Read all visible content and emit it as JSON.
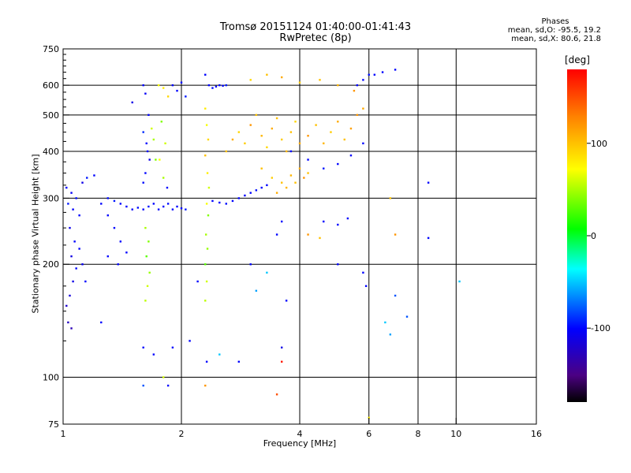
{
  "title": {
    "line1": "Tromsø 20151124 01:40:00-01:41:43",
    "line2": "RwPretec (8p)"
  },
  "stats": {
    "header": "Phases",
    "line1": "mean, sd,O: -95.5, 19.2",
    "line2": "mean, sd,X:  80.6, 21.8"
  },
  "chart_data": {
    "type": "scatter",
    "xlabel": "Frequency [MHz]",
    "ylabel": "Stationary phase Virtual Height [km]",
    "x_scale": "log",
    "y_scale": "log",
    "xlim": [
      1,
      16
    ],
    "ylim": [
      75,
      750
    ],
    "x_ticks": [
      1,
      2,
      4,
      6,
      8,
      10,
      16
    ],
    "x_tick_labels": [
      "1",
      "2",
      "4",
      "6",
      "8",
      "10",
      "16"
    ],
    "x_gridlines": [
      2,
      4,
      6,
      8,
      10
    ],
    "y_ticks": [
      75,
      100,
      200,
      300,
      400,
      500,
      600,
      750
    ],
    "y_tick_labels": [
      "75",
      "100",
      "200",
      "300",
      "400",
      "500",
      "600",
      "750"
    ],
    "y_gridlines": [
      100,
      200,
      300,
      400,
      500,
      600
    ],
    "colorbar": {
      "label": "[deg]",
      "range": [
        -180,
        180
      ],
      "ticks": [
        100,
        0,
        -100
      ],
      "tick_labels": [
        "100",
        "0",
        "-100"
      ]
    },
    "series": [
      {
        "color_by": "phase_deg",
        "points": [
          [
            1.02,
            320,
            -100
          ],
          [
            1.05,
            310,
            -105
          ],
          [
            1.08,
            300,
            -98
          ],
          [
            1.12,
            330,
            -110
          ],
          [
            1.15,
            340,
            -95
          ],
          [
            1.2,
            345,
            -100
          ],
          [
            1.03,
            290,
            -95
          ],
          [
            1.06,
            280,
            -102
          ],
          [
            1.1,
            270,
            -100
          ],
          [
            1.04,
            250,
            -108
          ],
          [
            1.07,
            230,
            -100
          ],
          [
            1.05,
            210,
            -112
          ],
          [
            1.08,
            195,
            -100
          ],
          [
            1.06,
            180,
            -110
          ],
          [
            1.04,
            165,
            -115
          ],
          [
            1.02,
            155,
            -120
          ],
          [
            1.03,
            140,
            -125
          ],
          [
            1.05,
            135,
            -130
          ],
          [
            1.1,
            220,
            -100
          ],
          [
            1.12,
            200,
            -105
          ],
          [
            1.14,
            180,
            -100
          ],
          [
            1.25,
            290,
            -100
          ],
          [
            1.3,
            300,
            -98
          ],
          [
            1.35,
            295,
            -95
          ],
          [
            1.4,
            290,
            -100
          ],
          [
            1.45,
            285,
            -100
          ],
          [
            1.5,
            280,
            -102
          ],
          [
            1.55,
            283,
            -98
          ],
          [
            1.6,
            280,
            -100
          ],
          [
            1.65,
            285,
            -95
          ],
          [
            1.7,
            290,
            -100
          ],
          [
            1.75,
            280,
            -100
          ],
          [
            1.8,
            285,
            -100
          ],
          [
            1.85,
            290,
            -98
          ],
          [
            1.9,
            280,
            -100
          ],
          [
            1.95,
            285,
            -100
          ],
          [
            2.0,
            282,
            -100
          ],
          [
            2.05,
            280,
            -95
          ],
          [
            1.6,
            600,
            -100
          ],
          [
            1.62,
            570,
            -105
          ],
          [
            1.65,
            500,
            -100
          ],
          [
            1.6,
            450,
            -90
          ],
          [
            1.63,
            420,
            -100
          ],
          [
            1.66,
            380,
            -110
          ],
          [
            1.62,
            350,
            -100
          ],
          [
            1.6,
            330,
            -98
          ],
          [
            1.64,
            400,
            -100
          ],
          [
            1.68,
            460,
            60
          ],
          [
            1.7,
            430,
            50
          ],
          [
            1.72,
            380,
            40
          ],
          [
            1.62,
            250,
            50
          ],
          [
            1.65,
            230,
            40
          ],
          [
            1.63,
            210,
            30
          ],
          [
            1.66,
            190,
            45
          ],
          [
            1.64,
            175,
            60
          ],
          [
            1.62,
            160,
            55
          ],
          [
            1.75,
            600,
            70
          ],
          [
            1.8,
            590,
            80
          ],
          [
            1.85,
            560,
            90
          ],
          [
            1.78,
            480,
            40
          ],
          [
            1.82,
            420,
            60
          ],
          [
            1.76,
            380,
            70
          ],
          [
            1.8,
            340,
            50
          ],
          [
            1.84,
            320,
            -100
          ],
          [
            1.9,
            600,
            -100
          ],
          [
            1.95,
            580,
            -100
          ],
          [
            2.0,
            610,
            -100
          ],
          [
            2.05,
            560,
            -95
          ],
          [
            2.3,
            640,
            -100
          ],
          [
            2.35,
            600,
            -100
          ],
          [
            2.4,
            590,
            -98
          ],
          [
            2.45,
            595,
            -100
          ],
          [
            2.5,
            600,
            -100
          ],
          [
            2.55,
            598,
            -100
          ],
          [
            2.6,
            600,
            -95
          ],
          [
            2.3,
            520,
            80
          ],
          [
            2.32,
            470,
            70
          ],
          [
            2.34,
            430,
            90
          ],
          [
            2.3,
            390,
            100
          ],
          [
            2.33,
            350,
            80
          ],
          [
            2.35,
            320,
            60
          ],
          [
            2.32,
            290,
            70
          ],
          [
            2.34,
            270,
            40
          ],
          [
            2.31,
            240,
            50
          ],
          [
            2.33,
            220,
            45
          ],
          [
            2.3,
            200,
            30
          ],
          [
            2.32,
            180,
            60
          ],
          [
            2.3,
            160,
            55
          ],
          [
            2.32,
            110,
            -100
          ],
          [
            2.3,
            95,
            120
          ],
          [
            2.4,
            295,
            -100
          ],
          [
            2.5,
            292,
            -100
          ],
          [
            2.6,
            290,
            -98
          ],
          [
            2.7,
            295,
            -100
          ],
          [
            2.8,
            300,
            -100
          ],
          [
            2.9,
            305,
            -102
          ],
          [
            3.0,
            310,
            -100
          ],
          [
            3.1,
            315,
            -98
          ],
          [
            3.2,
            320,
            -100
          ],
          [
            3.3,
            325,
            -100
          ],
          [
            2.6,
            400,
            100
          ],
          [
            2.7,
            430,
            110
          ],
          [
            2.8,
            450,
            90
          ],
          [
            2.9,
            420,
            95
          ],
          [
            3.0,
            470,
            120
          ],
          [
            3.1,
            500,
            100
          ],
          [
            3.2,
            440,
            105
          ],
          [
            3.3,
            410,
            90
          ],
          [
            3.4,
            460,
            110
          ],
          [
            3.5,
            490,
            100
          ],
          [
            3.6,
            430,
            95
          ],
          [
            3.7,
            400,
            105
          ],
          [
            3.8,
            450,
            100
          ],
          [
            3.9,
            480,
            90
          ],
          [
            4.0,
            420,
            110
          ],
          [
            4.2,
            440,
            120
          ],
          [
            4.4,
            470,
            100
          ],
          [
            4.6,
            420,
            105
          ],
          [
            4.8,
            450,
            95
          ],
          [
            5.0,
            480,
            110
          ],
          [
            5.2,
            430,
            100
          ],
          [
            5.4,
            460,
            115
          ],
          [
            5.6,
            500,
            120
          ],
          [
            5.8,
            520,
            110
          ],
          [
            3.0,
            620,
            90
          ],
          [
            3.3,
            640,
            100
          ],
          [
            3.6,
            630,
            110
          ],
          [
            4.0,
            610,
            95
          ],
          [
            4.5,
            620,
            100
          ],
          [
            5.0,
            600,
            105
          ],
          [
            5.5,
            580,
            120
          ],
          [
            3.2,
            360,
            100
          ],
          [
            3.4,
            340,
            95
          ],
          [
            3.6,
            330,
            100
          ],
          [
            3.8,
            345,
            105
          ],
          [
            4.0,
            360,
            110
          ],
          [
            4.2,
            350,
            100
          ],
          [
            3.5,
            310,
            110
          ],
          [
            3.7,
            320,
            105
          ],
          [
            3.9,
            330,
            100
          ],
          [
            4.1,
            340,
            120
          ],
          [
            3.8,
            400,
            -100
          ],
          [
            4.2,
            380,
            -100
          ],
          [
            4.6,
            360,
            -95
          ],
          [
            5.0,
            370,
            -100
          ],
          [
            5.4,
            390,
            -102
          ],
          [
            5.8,
            420,
            -100
          ],
          [
            5.6,
            600,
            -100
          ],
          [
            5.8,
            620,
            -100
          ],
          [
            6.0,
            640,
            -98
          ],
          [
            6.2,
            640,
            -100
          ],
          [
            6.5,
            650,
            -100
          ],
          [
            7.0,
            660,
            -100
          ],
          [
            6.8,
            300,
            100
          ],
          [
            7.0,
            240,
            120
          ],
          [
            8.5,
            330,
            -100
          ],
          [
            8.5,
            235,
            -100
          ],
          [
            10.2,
            180,
            -50
          ],
          [
            7.0,
            165,
            -80
          ],
          [
            7.5,
            145,
            -80
          ],
          [
            6.6,
            140,
            -50
          ],
          [
            6.8,
            130,
            -60
          ],
          [
            5.8,
            190,
            -100
          ],
          [
            5.9,
            175,
            -100
          ],
          [
            6.0,
            78,
            80
          ],
          [
            4.6,
            260,
            -100
          ],
          [
            5.0,
            255,
            -100
          ],
          [
            5.3,
            265,
            -100
          ],
          [
            4.2,
            240,
            120
          ],
          [
            4.5,
            235,
            100
          ],
          [
            3.5,
            240,
            -100
          ],
          [
            3.6,
            260,
            -100
          ],
          [
            3.7,
            160,
            -100
          ],
          [
            3.6,
            120,
            -110
          ],
          [
            3.5,
            90,
            150
          ],
          [
            3.6,
            110,
            170
          ],
          [
            2.8,
            110,
            -100
          ],
          [
            2.5,
            115,
            -50
          ],
          [
            1.6,
            95,
            -80
          ],
          [
            1.6,
            120,
            -100
          ],
          [
            1.7,
            115,
            -100
          ],
          [
            1.8,
            100,
            60
          ],
          [
            1.85,
            95,
            -100
          ],
          [
            1.9,
            120,
            -100
          ],
          [
            2.1,
            125,
            -100
          ],
          [
            2.2,
            180,
            -100
          ],
          [
            1.25,
            140,
            -100
          ],
          [
            1.3,
            210,
            -100
          ],
          [
            1.38,
            200,
            -100
          ],
          [
            1.45,
            215,
            -100
          ],
          [
            1.5,
            540,
            -110
          ],
          [
            1.3,
            270,
            -100
          ],
          [
            1.35,
            250,
            -100
          ],
          [
            1.4,
            230,
            -100
          ],
          [
            3.0,
            200,
            -100
          ],
          [
            3.1,
            170,
            -60
          ],
          [
            3.3,
            190,
            -50
          ],
          [
            5.0,
            200,
            -100
          ]
        ]
      }
    ]
  }
}
